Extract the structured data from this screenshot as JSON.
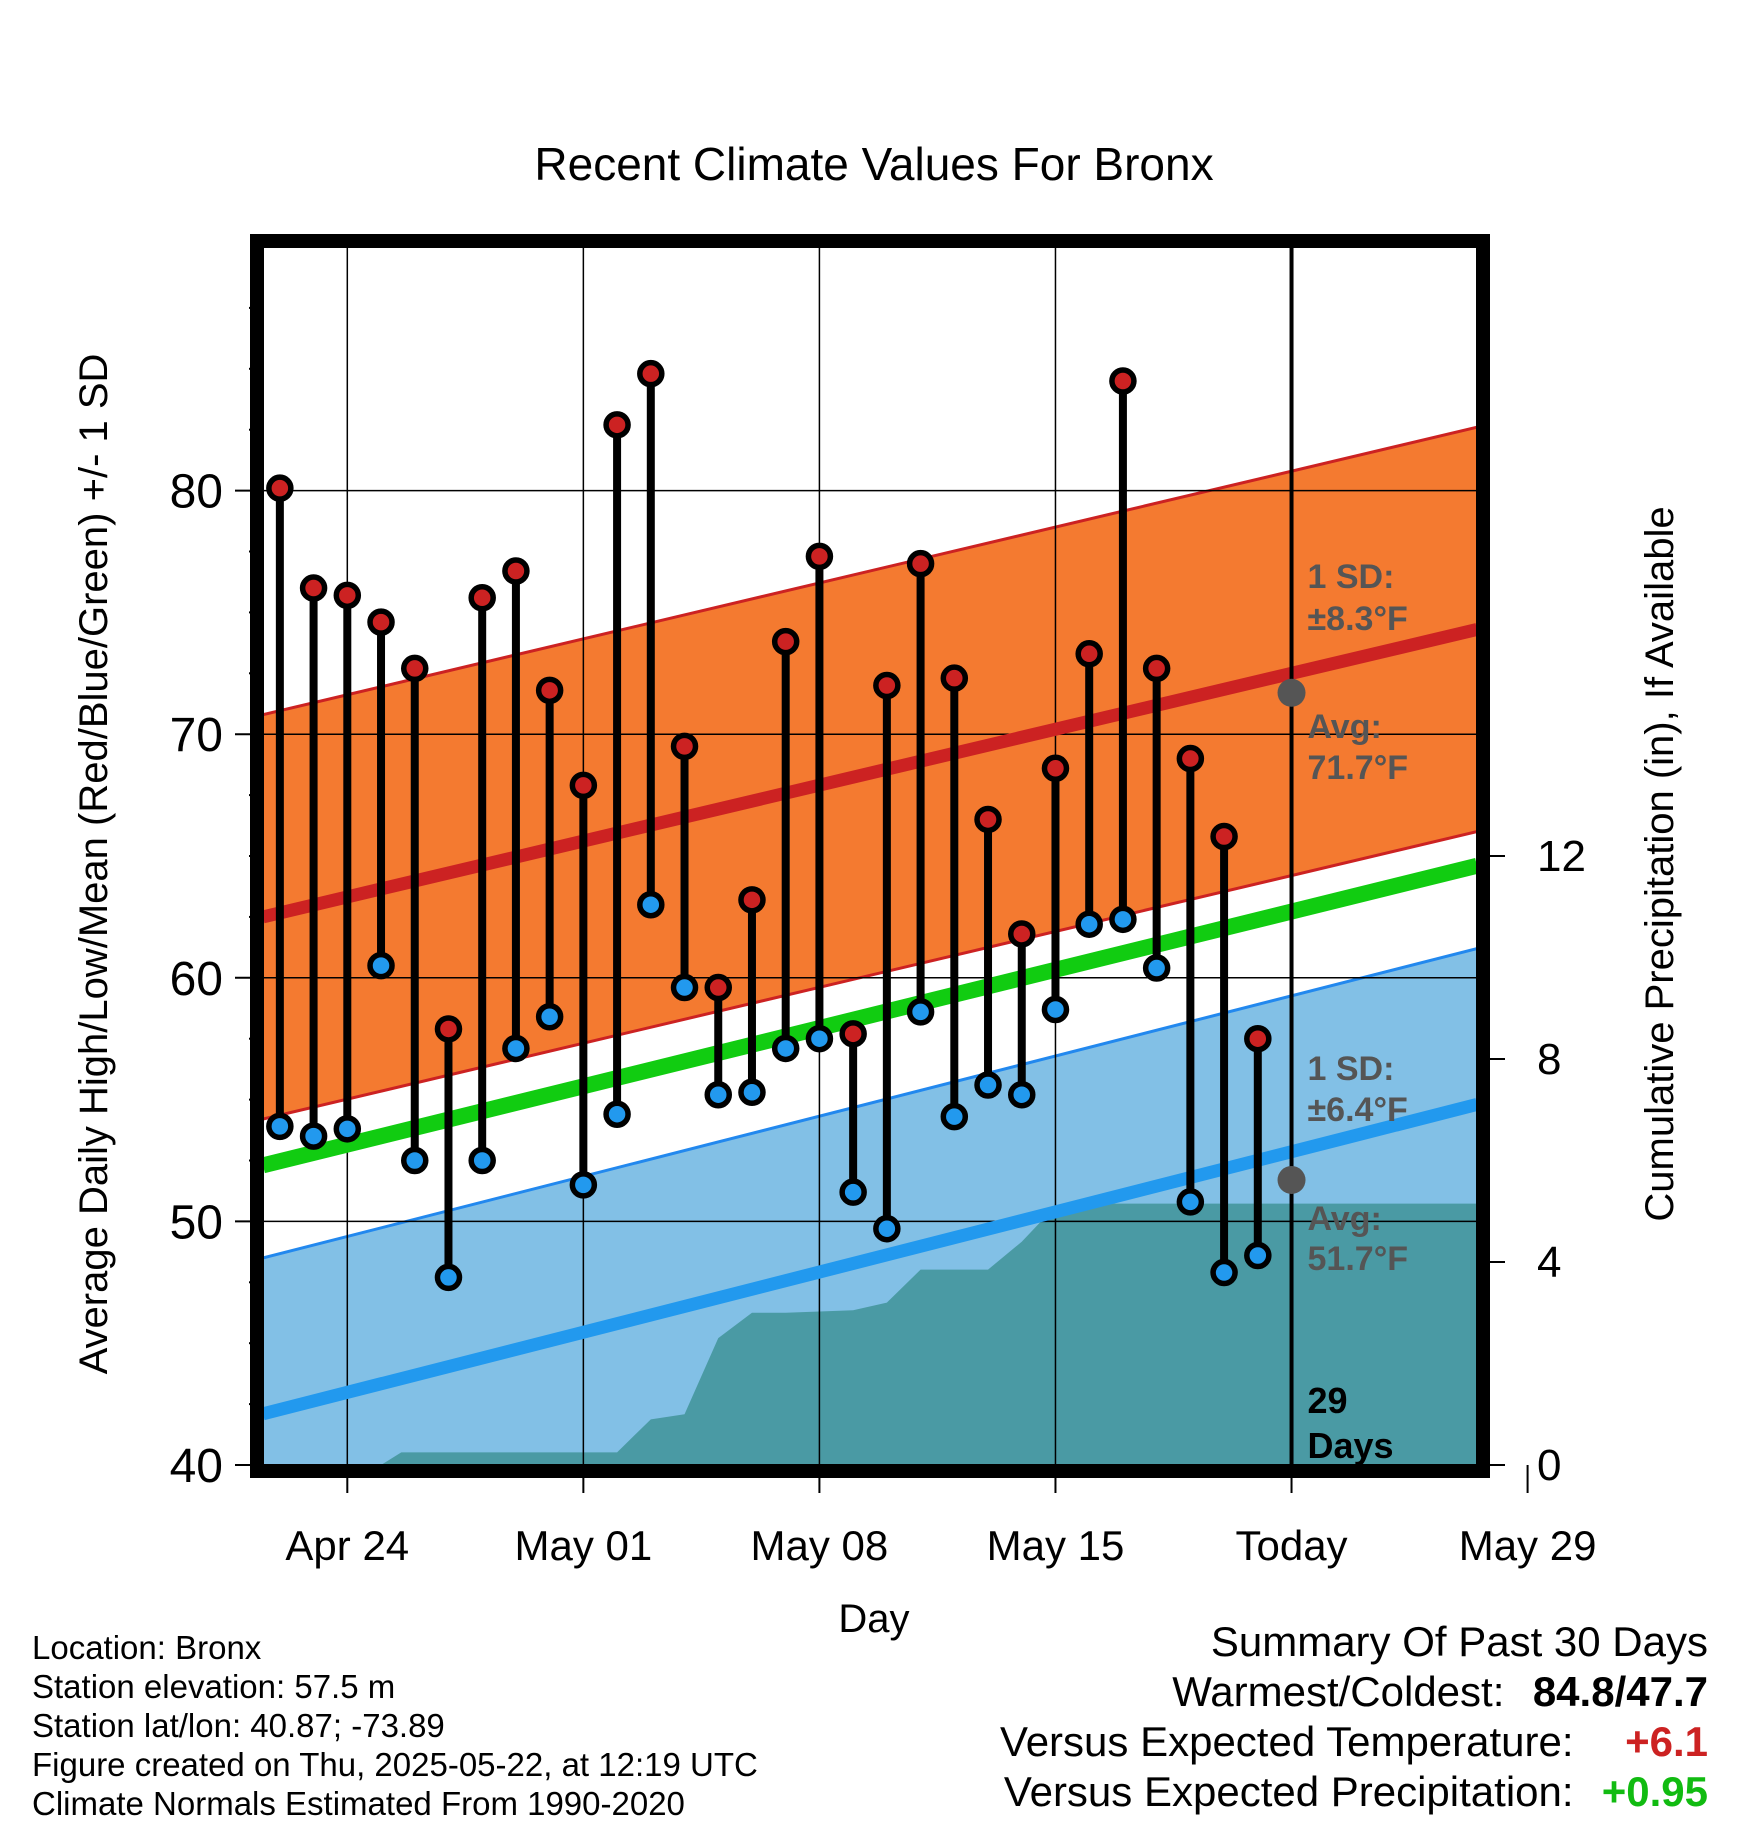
{
  "chart_data": {
    "type": "line",
    "title": "Recent Climate Values For Bronx",
    "xlabel": "Day",
    "ylabel": "Average Daily High/Low/Mean (Red/Blue/Green) +/- 1 SD",
    "y2label": "Cumulative Precipitation (in), If Available",
    "xlim": [
      -2.5,
      33.5
    ],
    "ylim": [
      40,
      90
    ],
    "y2lim": [
      0,
      24
    ],
    "yticks": [
      40,
      50,
      60,
      70,
      80
    ],
    "y2ticks": [
      0,
      4,
      8,
      12
    ],
    "xtick_labels": [
      {
        "x": 0,
        "label": "Apr 24"
      },
      {
        "x": 7,
        "label": "May 01"
      },
      {
        "x": 14,
        "label": "May 08"
      },
      {
        "x": 21,
        "label": "May 15"
      },
      {
        "x": 28,
        "label": "Today"
      },
      {
        "x": 35,
        "label": "May 29"
      }
    ],
    "grid": true,
    "colors": {
      "high": "#cc2222",
      "low": "#2299ee",
      "mean": "#11cc11",
      "high_band": "#f47a30",
      "low_band": "#82c0e6",
      "precip": "#4a9aa4",
      "annotation": "#555555"
    },
    "normals": {
      "x": [
        -2.5,
        33.5
      ],
      "high_avg": [
        62.5,
        74.3
      ],
      "high_sd": 8.3,
      "low_avg": [
        42.1,
        54.8
      ],
      "low_sd": 6.4,
      "mean_avg": [
        52.3,
        64.6
      ]
    },
    "series": [
      {
        "name": "Daily High",
        "x": [
          -2,
          -1,
          0,
          1,
          2,
          3,
          4,
          5,
          6,
          7,
          8,
          9,
          10,
          11,
          12,
          13,
          14,
          15,
          16,
          17,
          18,
          19,
          20,
          21,
          22,
          23,
          24,
          25,
          26,
          27
        ],
        "values": [
          80.1,
          76.0,
          75.7,
          74.6,
          72.7,
          57.9,
          75.6,
          76.7,
          71.8,
          67.9,
          82.7,
          84.8,
          69.5,
          59.6,
          63.2,
          73.8,
          77.3,
          57.7,
          72.0,
          77.0,
          72.3,
          66.5,
          61.8,
          68.6,
          73.3,
          84.5,
          72.7,
          69.0,
          65.8,
          57.5
        ]
      },
      {
        "name": "Daily Low",
        "x": [
          -2,
          -1,
          0,
          1,
          2,
          3,
          4,
          5,
          6,
          7,
          8,
          9,
          10,
          11,
          12,
          13,
          14,
          15,
          16,
          17,
          18,
          19,
          20,
          21,
          22,
          23,
          24,
          25,
          26,
          27
        ],
        "values": [
          53.9,
          53.5,
          53.8,
          60.5,
          52.5,
          47.7,
          52.5,
          57.1,
          58.4,
          51.5,
          54.4,
          63.0,
          59.6,
          55.2,
          55.3,
          57.1,
          57.5,
          51.2,
          49.7,
          58.6,
          54.3,
          55.6,
          55.2,
          58.7,
          62.2,
          62.4,
          60.4,
          50.8,
          47.9,
          48.6
        ]
      },
      {
        "name": "Cumulative Precipitation",
        "x": [
          -2.5,
          0,
          1,
          1.6,
          8,
          9,
          10,
          11,
          12,
          13,
          15,
          16,
          17,
          19,
          20,
          21,
          22,
          23,
          33.5
        ],
        "values": [
          0,
          0,
          0,
          0.25,
          0.25,
          0.9,
          1.0,
          2.5,
          3.0,
          3.0,
          3.05,
          3.2,
          3.85,
          3.85,
          4.4,
          5.1,
          5.15,
          5.15,
          5.15
        ]
      }
    ],
    "annotations": {
      "high_sd_label": "1 SD:",
      "high_sd_value": "±8.3°F",
      "high_avg_label": "Avg:",
      "high_avg_value": "71.7°F",
      "low_sd_label": "1 SD:",
      "low_sd_value": "±6.4°F",
      "low_avg_label": "Avg:",
      "low_avg_value": "51.7°F",
      "days_count": "29",
      "days_label": "Days",
      "today_high_avg": 71.7,
      "today_low_avg": 51.7
    }
  },
  "info": {
    "location": "Location: Bronx",
    "elevation": "Station elevation: 57.5 m",
    "latlon": "Station lat/lon: 40.87; -73.89",
    "created": "Figure created on Thu, 2025-05-22, at 12:19 UTC",
    "normals": "Climate Normals Estimated From 1990-2020"
  },
  "summary": {
    "title": "Summary Of Past 30 Days",
    "warmest_label": "Warmest/Coldest:",
    "warmest_value": "84.8/47.7",
    "temp_label": "Versus Expected Temperature:",
    "temp_value": "+6.1",
    "temp_color": "#cc2222",
    "precip_label": "Versus Expected Precipitation:",
    "precip_value": "+0.95",
    "precip_color": "#11bb11"
  }
}
